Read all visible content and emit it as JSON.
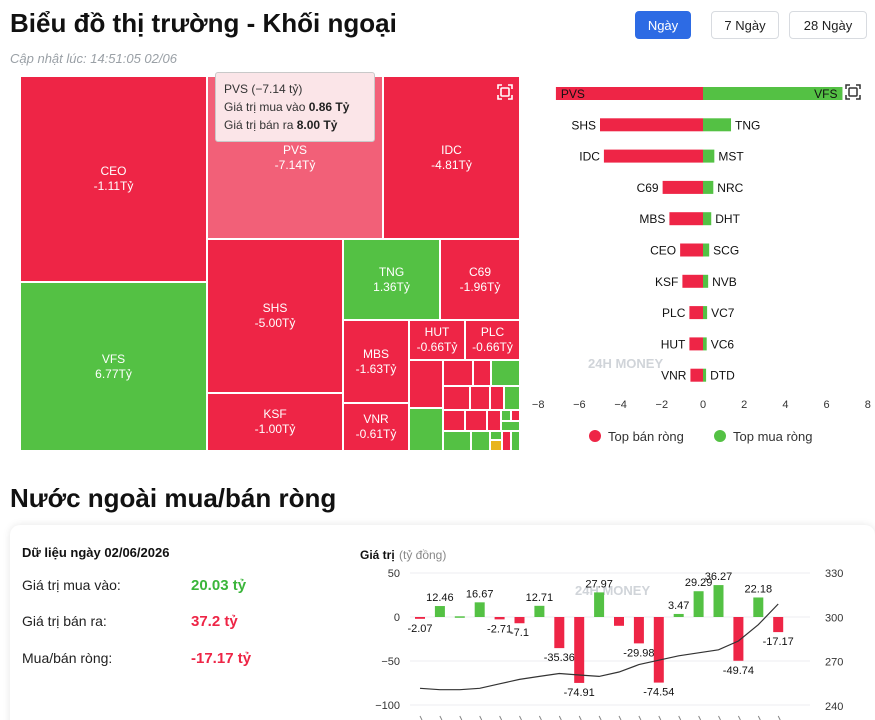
{
  "header": {
    "title": "Biểu đồ thị trường - Khối ngoại",
    "updated": "Cập nhật lúc: 14:51:05 02/06",
    "tabs": [
      "Ngày",
      "7 Ngày",
      "28 Ngày"
    ],
    "active_tab": "Ngày"
  },
  "treemap": {
    "tiles": [
      {
        "ticker": "CEO",
        "value": "-1.11Tỷ",
        "tone": "red"
      },
      {
        "ticker": "VFS",
        "value": "6.77Tỷ",
        "tone": "green"
      },
      {
        "ticker": "PVS",
        "value": "-7.14Tỷ",
        "tone": "lred"
      },
      {
        "ticker": "IDC",
        "value": "-4.81Tỷ",
        "tone": "red"
      },
      {
        "ticker": "SHS",
        "value": "-5.00Tỷ",
        "tone": "red"
      },
      {
        "ticker": "KSF",
        "value": "-1.00Tỷ",
        "tone": "red"
      },
      {
        "ticker": "TNG",
        "value": "1.36Tỷ",
        "tone": "green"
      },
      {
        "ticker": "C69",
        "value": "-1.96Tỷ",
        "tone": "red"
      },
      {
        "ticker": "MBS",
        "value": "-1.63Tỷ",
        "tone": "red"
      },
      {
        "ticker": "VNR",
        "value": "-0.61Tỷ",
        "tone": "red"
      },
      {
        "ticker": "HUT",
        "value": "-0.66Tỷ",
        "tone": "red"
      },
      {
        "ticker": "PLC",
        "value": "-0.66Tỷ",
        "tone": "red"
      }
    ],
    "tooltip": {
      "title": "PVS (−7.14 tỷ)",
      "buy_label": "Giá trị mua vào",
      "buy_value": "0.86 Tỷ",
      "sell_label": "Giá trị bán ra",
      "sell_value": "8.00 Tỷ"
    }
  },
  "top_bars": {
    "chart_data": {
      "type": "bar",
      "orientation": "horizontal",
      "xlim": [
        -8,
        8
      ],
      "xticks": [
        "−8",
        "−6",
        "−4",
        "−2",
        "0",
        "2",
        "4",
        "6",
        "8"
      ],
      "sellers": [
        {
          "ticker": "PVS",
          "value": -7.14
        },
        {
          "ticker": "SHS",
          "value": -5.0
        },
        {
          "ticker": "IDC",
          "value": -4.81
        },
        {
          "ticker": "C69",
          "value": -1.96
        },
        {
          "ticker": "MBS",
          "value": -1.63
        },
        {
          "ticker": "CEO",
          "value": -1.11
        },
        {
          "ticker": "KSF",
          "value": -1.0
        },
        {
          "ticker": "PLC",
          "value": -0.66
        },
        {
          "ticker": "HUT",
          "value": -0.66
        },
        {
          "ticker": "VNR",
          "value": -0.61
        }
      ],
      "buyers": [
        {
          "ticker": "VFS",
          "value": 6.77
        },
        {
          "ticker": "TNG",
          "value": 1.36
        },
        {
          "ticker": "MST",
          "value": 0.55
        },
        {
          "ticker": "NRC",
          "value": 0.5
        },
        {
          "ticker": "DHT",
          "value": 0.4
        },
        {
          "ticker": "SCG",
          "value": 0.3
        },
        {
          "ticker": "NVB",
          "value": 0.25
        },
        {
          "ticker": "VC7",
          "value": 0.2
        },
        {
          "ticker": "VC6",
          "value": 0.18
        },
        {
          "ticker": "DTD",
          "value": 0.15
        }
      ],
      "legend": [
        "Top bán ròng",
        "Top mua ròng"
      ],
      "legend_position": "bottom",
      "colors": {
        "sell": "#ee2546",
        "buy": "#54c144"
      }
    },
    "watermark": "24H MONEY"
  },
  "net_section": {
    "title": "Nước ngoài mua/bán ròng",
    "data_date": "Dữ liệu ngày 02/06/2026",
    "buy_label": "Giá trị mua vào:",
    "buy_value": "20.03 tỷ",
    "sell_label": "Giá trị bán ra:",
    "sell_value": "37.2 tỷ",
    "net_label": "Mua/bán ròng:",
    "net_value": "-17.17 tỷ"
  },
  "net_chart": {
    "chart_data": {
      "type": "bar",
      "ylabel": "Giá trị",
      "ylabel_unit": "(tỷ đồng)",
      "ylim": [
        -100,
        50
      ],
      "yticks": [
        "50",
        "0",
        "−50",
        "−100"
      ],
      "y2ticks": [
        "330",
        "300",
        "270",
        "240"
      ],
      "y2lim": [
        240,
        330
      ],
      "bar_values": [
        -2.07,
        12.46,
        0.8,
        16.67,
        -2.71,
        -7.1,
        12.71,
        -35.36,
        -74.91,
        27.97,
        -10,
        -29.98,
        -74.54,
        3.47,
        29.29,
        36.27,
        -49.74,
        22.18,
        -17.17
      ],
      "labels": [
        "-2.07",
        "12.46",
        "",
        "16.67",
        "-2.71",
        "-7.1",
        "12.71",
        "-35.36",
        "-74.91",
        "27.97",
        "",
        "-29.98",
        "-74.54",
        "3.47",
        "29.29",
        "36.27",
        "-49.74",
        "22.18",
        "-17.17"
      ],
      "line_values": [
        252,
        251,
        251,
        252,
        255,
        258,
        260,
        262,
        261,
        260,
        263,
        268,
        271,
        274,
        276,
        278,
        284,
        295,
        309
      ]
    },
    "watermark": "24H MONEY"
  }
}
